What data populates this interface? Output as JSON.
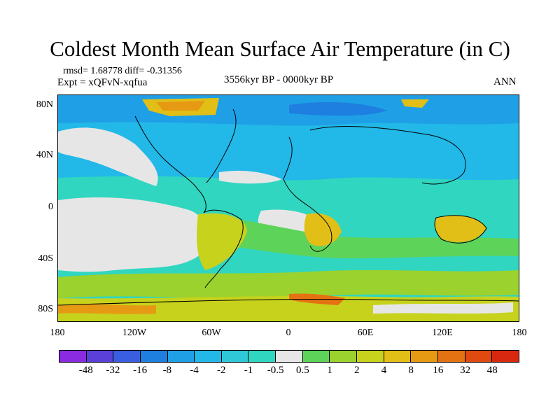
{
  "title": "Coldest Month Mean Surface Air Temperature (in C)",
  "stats": "rmsd= 1.68778 diff= -0.31356",
  "experiment": "Expt = xQFvN-xqfua",
  "period": "3556kyr BP - 0000kyr BP",
  "season": "ANN",
  "lat_labels": [
    "80N",
    "40N",
    "0",
    "40S",
    "80S"
  ],
  "lon_labels": [
    "180",
    "120W",
    "60W",
    "0",
    "60E",
    "120E",
    "180"
  ],
  "colorbar": {
    "labels": [
      "-48",
      "-32",
      "-16",
      "-8",
      "-4",
      "-2",
      "-1",
      "-0.5",
      "0.5",
      "1",
      "2",
      "4",
      "8",
      "16",
      "32",
      "48"
    ],
    "colors": [
      "#8a2be2",
      "#5a3fd8",
      "#3a5ee0",
      "#1f7fe0",
      "#1fa0e6",
      "#22b8e8",
      "#2ec8d8",
      "#30d6c0",
      "#e6e6e6",
      "#5ed35a",
      "#9bd22e",
      "#c7d21c",
      "#e1bf16",
      "#e69a14",
      "#e47212",
      "#e04a10",
      "#d82810"
    ]
  }
}
